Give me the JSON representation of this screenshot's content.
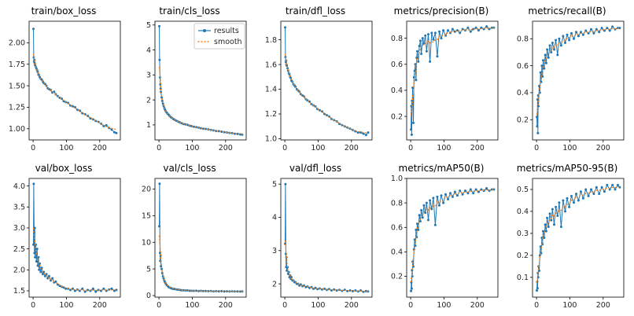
{
  "figure": {
    "background": "#ffffff",
    "results_color": "#1f77b4",
    "smooth_color": "#ff7f0e",
    "legend": {
      "results_label": "results",
      "smooth_label": "smooth"
    }
  },
  "epochs": [
    1,
    2,
    3,
    4,
    5,
    6,
    8,
    10,
    12,
    14,
    16,
    18,
    20,
    23,
    26,
    29,
    32,
    36,
    40,
    44,
    48,
    53,
    58,
    63,
    68,
    74,
    80,
    86,
    92,
    98,
    105,
    112,
    119,
    126,
    133,
    140,
    148,
    156,
    164,
    172,
    180,
    188,
    196,
    204,
    212,
    220,
    228,
    236,
    244,
    250
  ],
  "chart_data": [
    {
      "type": "line",
      "title": "train/box_loss",
      "xlabel": "",
      "ylabel": "",
      "xlim": [
        -12,
        262
      ],
      "ylim": [
        0.87,
        2.25
      ],
      "xticks": [
        "0",
        "100",
        "200"
      ],
      "yticks": [
        "1.00",
        "1.25",
        "1.50",
        "1.75",
        "2.00"
      ],
      "legend": false,
      "series": [
        {
          "name": "results",
          "style": "line-marker"
        },
        {
          "name": "smooth",
          "style": "dotted",
          "derived": "moving-average"
        }
      ],
      "values": [
        2.16,
        1.83,
        1.78,
        1.8,
        1.76,
        1.74,
        1.72,
        1.7,
        1.68,
        1.66,
        1.63,
        1.62,
        1.6,
        1.58,
        1.57,
        1.55,
        1.53,
        1.52,
        1.5,
        1.47,
        1.46,
        1.45,
        1.42,
        1.43,
        1.4,
        1.38,
        1.36,
        1.35,
        1.32,
        1.31,
        1.3,
        1.27,
        1.26,
        1.25,
        1.22,
        1.21,
        1.18,
        1.17,
        1.15,
        1.12,
        1.11,
        1.09,
        1.08,
        1.06,
        1.03,
        1.04,
        1.01,
        0.99,
        0.96,
        0.95
      ]
    },
    {
      "type": "line",
      "title": "train/cls_loss",
      "xlabel": "",
      "ylabel": "",
      "xlim": [
        -12,
        262
      ],
      "ylim": [
        0.4,
        5.15
      ],
      "xticks": [
        "0",
        "100",
        "200"
      ],
      "yticks": [
        "1",
        "2",
        "3",
        "4",
        "5"
      ],
      "legend": true,
      "series": [
        {
          "name": "results",
          "style": "line-marker"
        },
        {
          "name": "smooth",
          "style": "dotted",
          "derived": "moving-average"
        }
      ],
      "values": [
        4.95,
        3.6,
        2.9,
        2.62,
        2.45,
        2.32,
        2.1,
        1.96,
        1.85,
        1.76,
        1.68,
        1.62,
        1.56,
        1.5,
        1.45,
        1.41,
        1.36,
        1.31,
        1.27,
        1.23,
        1.2,
        1.16,
        1.13,
        1.1,
        1.07,
        1.04,
        1.02,
        1.0,
        0.97,
        0.95,
        0.93,
        0.91,
        0.89,
        0.87,
        0.85,
        0.84,
        0.82,
        0.8,
        0.78,
        0.76,
        0.75,
        0.73,
        0.71,
        0.7,
        0.68,
        0.67,
        0.65,
        0.64,
        0.62,
        0.61
      ]
    },
    {
      "type": "line",
      "title": "train/dfl_loss",
      "xlabel": "",
      "ylabel": "",
      "xlim": [
        -12,
        262
      ],
      "ylim": [
        0.99,
        1.95
      ],
      "xticks": [
        "0",
        "100",
        "200"
      ],
      "yticks": [
        "1.0",
        "1.2",
        "1.4",
        "1.6",
        "1.8"
      ],
      "legend": false,
      "series": [
        {
          "name": "results",
          "style": "line-marker"
        },
        {
          "name": "smooth",
          "style": "dotted",
          "derived": "moving-average"
        }
      ],
      "values": [
        1.9,
        1.66,
        1.62,
        1.63,
        1.6,
        1.59,
        1.57,
        1.55,
        1.53,
        1.52,
        1.5,
        1.49,
        1.47,
        1.46,
        1.44,
        1.43,
        1.42,
        1.4,
        1.39,
        1.38,
        1.36,
        1.35,
        1.34,
        1.32,
        1.31,
        1.3,
        1.28,
        1.27,
        1.26,
        1.24,
        1.23,
        1.22,
        1.2,
        1.19,
        1.18,
        1.16,
        1.15,
        1.14,
        1.12,
        1.11,
        1.1,
        1.09,
        1.08,
        1.07,
        1.06,
        1.05,
        1.05,
        1.04,
        1.03,
        1.05
      ]
    },
    {
      "type": "line",
      "title": "metrics/precision(B)",
      "xlabel": "",
      "ylabel": "",
      "xlim": [
        -12,
        262
      ],
      "ylim": [
        0.02,
        0.93
      ],
      "xticks": [
        "0",
        "100",
        "200"
      ],
      "yticks": [
        "0.2",
        "0.4",
        "0.6",
        "0.8"
      ],
      "legend": false,
      "series": [
        {
          "name": "results",
          "style": "line-marker"
        },
        {
          "name": "smooth",
          "style": "dotted",
          "derived": "moving-average"
        }
      ],
      "values": [
        0.1,
        0.28,
        0.06,
        0.32,
        0.3,
        0.42,
        0.15,
        0.5,
        0.55,
        0.6,
        0.48,
        0.65,
        0.7,
        0.62,
        0.74,
        0.78,
        0.68,
        0.8,
        0.76,
        0.82,
        0.7,
        0.83,
        0.62,
        0.84,
        0.79,
        0.84,
        0.66,
        0.85,
        0.8,
        0.86,
        0.82,
        0.86,
        0.84,
        0.87,
        0.85,
        0.86,
        0.84,
        0.87,
        0.86,
        0.88,
        0.85,
        0.87,
        0.88,
        0.86,
        0.88,
        0.87,
        0.89,
        0.87,
        0.88,
        0.88
      ]
    },
    {
      "type": "line",
      "title": "metrics/recall(B)",
      "xlabel": "",
      "ylabel": "",
      "xlim": [
        -12,
        262
      ],
      "ylim": [
        0.05,
        0.93
      ],
      "xticks": [
        "0",
        "100",
        "200"
      ],
      "yticks": [
        "0.2",
        "0.4",
        "0.6",
        "0.8"
      ],
      "legend": false,
      "series": [
        {
          "name": "results",
          "style": "line-marker"
        },
        {
          "name": "smooth",
          "style": "dotted",
          "derived": "moving-average"
        }
      ],
      "values": [
        0.22,
        0.15,
        0.35,
        0.1,
        0.38,
        0.3,
        0.45,
        0.4,
        0.55,
        0.48,
        0.6,
        0.52,
        0.64,
        0.58,
        0.68,
        0.62,
        0.72,
        0.66,
        0.75,
        0.7,
        0.77,
        0.72,
        0.79,
        0.68,
        0.8,
        0.75,
        0.82,
        0.77,
        0.83,
        0.79,
        0.84,
        0.8,
        0.85,
        0.82,
        0.85,
        0.83,
        0.86,
        0.84,
        0.87,
        0.84,
        0.87,
        0.85,
        0.88,
        0.86,
        0.88,
        0.86,
        0.89,
        0.87,
        0.88,
        0.88
      ]
    },
    {
      "type": "line",
      "title": "val/box_loss",
      "xlabel": "",
      "ylabel": "",
      "xlim": [
        -12,
        262
      ],
      "ylim": [
        1.35,
        4.18
      ],
      "xticks": [
        "0",
        "100",
        "200"
      ],
      "yticks": [
        "1.5",
        "2.0",
        "2.5",
        "3.0",
        "3.5",
        "4.0"
      ],
      "legend": false,
      "series": [
        {
          "name": "results",
          "style": "line-marker"
        },
        {
          "name": "smooth",
          "style": "dotted",
          "derived": "moving-average"
        }
      ],
      "values": [
        2.6,
        4.05,
        2.9,
        2.4,
        3.0,
        2.3,
        2.6,
        2.2,
        2.5,
        2.1,
        2.3,
        2.0,
        2.15,
        1.95,
        2.05,
        1.9,
        1.95,
        1.85,
        1.9,
        1.8,
        1.85,
        1.75,
        1.8,
        1.7,
        1.72,
        1.65,
        1.62,
        1.6,
        1.58,
        1.55,
        1.55,
        1.52,
        1.55,
        1.5,
        1.53,
        1.5,
        1.55,
        1.48,
        1.52,
        1.5,
        1.55,
        1.48,
        1.52,
        1.5,
        1.55,
        1.5,
        1.53,
        1.55,
        1.5,
        1.52
      ]
    },
    {
      "type": "line",
      "title": "val/cls_loss",
      "xlabel": "",
      "ylabel": "",
      "xlim": [
        -12,
        262
      ],
      "ylim": [
        -0.3,
        22.0
      ],
      "xticks": [
        "0",
        "100",
        "200"
      ],
      "yticks": [
        "0",
        "5",
        "10",
        "15",
        "20"
      ],
      "legend": false,
      "series": [
        {
          "name": "results",
          "style": "line-marker"
        },
        {
          "name": "smooth",
          "style": "dotted",
          "derived": "moving-average"
        }
      ],
      "values": [
        13.0,
        21.0,
        8.0,
        6.5,
        7.5,
        5.5,
        5.0,
        4.2,
        3.6,
        3.2,
        2.8,
        2.5,
        2.3,
        2.0,
        1.8,
        1.6,
        1.5,
        1.4,
        1.3,
        1.25,
        1.2,
        1.15,
        1.1,
        1.05,
        1.0,
        1.0,
        0.95,
        0.95,
        0.9,
        0.9,
        0.88,
        0.9,
        0.85,
        0.88,
        0.85,
        0.85,
        0.82,
        0.85,
        0.8,
        0.82,
        0.8,
        0.82,
        0.78,
        0.8,
        0.78,
        0.8,
        0.76,
        0.78,
        0.75,
        0.76
      ]
    },
    {
      "type": "line",
      "title": "val/dfl_loss",
      "xlabel": "",
      "ylabel": "",
      "xlim": [
        -12,
        262
      ],
      "ylim": [
        1.6,
        5.17
      ],
      "xticks": [
        "0",
        "100",
        "200"
      ],
      "yticks": [
        "2",
        "3",
        "4",
        "5"
      ],
      "legend": false,
      "series": [
        {
          "name": "results",
          "style": "line-marker"
        },
        {
          "name": "smooth",
          "style": "dotted",
          "derived": "moving-average"
        }
      ],
      "values": [
        3.2,
        5.0,
        2.9,
        2.5,
        2.8,
        2.4,
        2.5,
        2.3,
        2.35,
        2.2,
        2.25,
        2.15,
        2.2,
        2.1,
        2.1,
        2.05,
        2.05,
        2.0,
        2.0,
        1.95,
        1.98,
        1.93,
        1.95,
        1.9,
        1.92,
        1.88,
        1.9,
        1.85,
        1.88,
        1.84,
        1.86,
        1.83,
        1.85,
        1.82,
        1.84,
        1.8,
        1.83,
        1.8,
        1.82,
        1.79,
        1.82,
        1.78,
        1.8,
        1.78,
        1.8,
        1.77,
        1.8,
        1.76,
        1.78,
        1.77
      ]
    },
    {
      "type": "line",
      "title": "metrics/mAP50(B)",
      "xlabel": "",
      "ylabel": "",
      "xlim": [
        -12,
        262
      ],
      "ylim": [
        0.03,
        1.0
      ],
      "xticks": [
        "0",
        "100",
        "200"
      ],
      "yticks": [
        "0.2",
        "0.4",
        "0.6",
        "0.8",
        "1.0"
      ],
      "legend": false,
      "series": [
        {
          "name": "results",
          "style": "line-marker"
        },
        {
          "name": "smooth",
          "style": "dotted",
          "derived": "moving-average"
        }
      ],
      "values": [
        0.08,
        0.15,
        0.1,
        0.25,
        0.2,
        0.32,
        0.28,
        0.42,
        0.5,
        0.45,
        0.58,
        0.52,
        0.63,
        0.58,
        0.7,
        0.65,
        0.74,
        0.68,
        0.78,
        0.72,
        0.8,
        0.66,
        0.82,
        0.75,
        0.84,
        0.62,
        0.85,
        0.78,
        0.86,
        0.8,
        0.87,
        0.83,
        0.88,
        0.85,
        0.89,
        0.86,
        0.9,
        0.87,
        0.9,
        0.88,
        0.91,
        0.88,
        0.91,
        0.89,
        0.91,
        0.9,
        0.92,
        0.9,
        0.91,
        0.91
      ]
    },
    {
      "type": "line",
      "title": "metrics/mAP50-95(B)",
      "xlabel": "",
      "ylabel": "",
      "xlim": [
        -12,
        262
      ],
      "ylim": [
        0.01,
        0.55
      ],
      "xticks": [
        "0",
        "100",
        "200"
      ],
      "yticks": [
        "0.1",
        "0.2",
        "0.3",
        "0.4",
        "0.5"
      ],
      "legend": false,
      "series": [
        {
          "name": "results",
          "style": "line-marker"
        },
        {
          "name": "smooth",
          "style": "dotted",
          "derived": "moving-average"
        }
      ],
      "values": [
        0.04,
        0.08,
        0.05,
        0.12,
        0.1,
        0.15,
        0.13,
        0.2,
        0.24,
        0.21,
        0.28,
        0.25,
        0.31,
        0.28,
        0.34,
        0.31,
        0.37,
        0.33,
        0.39,
        0.36,
        0.41,
        0.34,
        0.42,
        0.38,
        0.44,
        0.33,
        0.45,
        0.4,
        0.46,
        0.42,
        0.47,
        0.44,
        0.48,
        0.45,
        0.49,
        0.46,
        0.5,
        0.47,
        0.5,
        0.48,
        0.51,
        0.48,
        0.51,
        0.49,
        0.52,
        0.5,
        0.52,
        0.5,
        0.52,
        0.51
      ]
    }
  ]
}
